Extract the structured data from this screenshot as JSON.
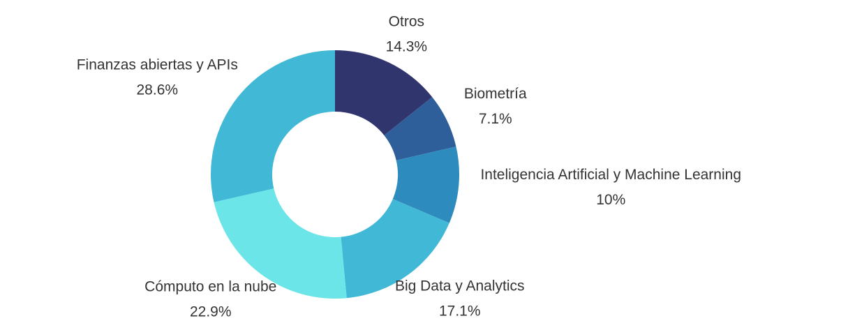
{
  "chart_data": {
    "type": "donut",
    "categories": [
      "Otros",
      "Biometría",
      "Inteligencia Artificial y Machine Learning",
      "Big Data y Analytics",
      "Cómputo en la nube",
      "Finanzas abiertas y APIs"
    ],
    "values": [
      14.3,
      7.1,
      10,
      17.1,
      22.9,
      28.6
    ],
    "value_labels": [
      "14.3%",
      "7.1%",
      "10%",
      "17.1%",
      "22.9%",
      "28.6%"
    ],
    "colors": [
      "#31356e",
      "#2e5f9a",
      "#2e8bbd",
      "#41b8d5",
      "#6ce5e8",
      "#41b8d5"
    ]
  }
}
